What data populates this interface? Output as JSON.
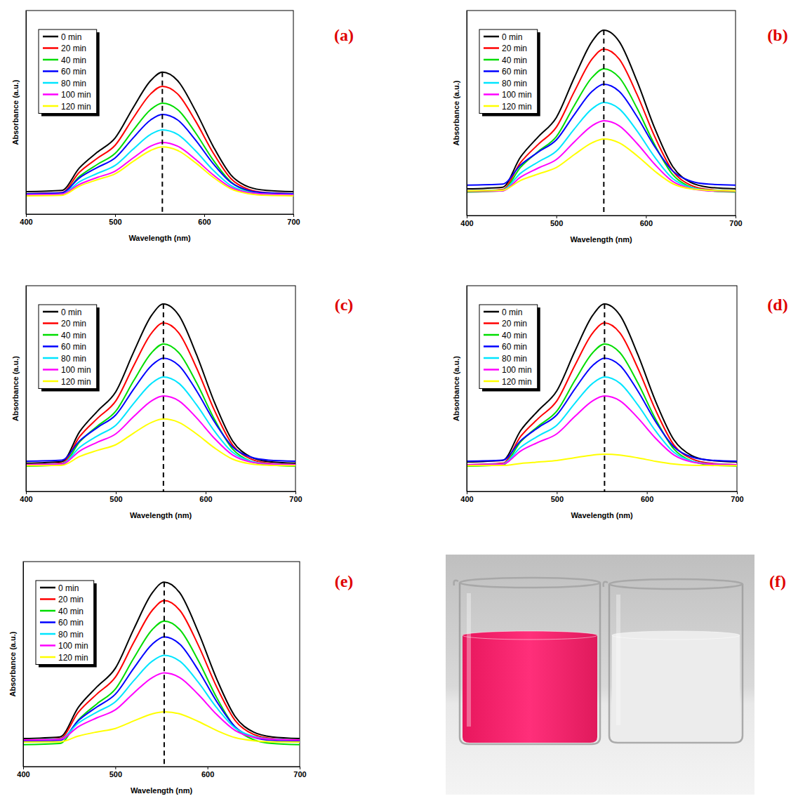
{
  "chart_data": [
    {
      "type": "line",
      "panel_label": "(a)",
      "x_label": "Wavelength (nm)",
      "y_label": "Absorbance (a.u.)",
      "x": [
        400,
        440,
        460,
        480,
        500,
        520,
        540,
        553,
        570,
        590,
        610,
        630,
        650,
        670,
        700
      ],
      "xlim": [
        400,
        700
      ],
      "xticks": [
        400,
        500,
        600,
        700
      ],
      "ylim": [
        0,
        1
      ],
      "tick_labels": "x",
      "legend": "upper-left",
      "reference_x": 553,
      "series": [
        {
          "name": "0 min",
          "color": "#000000",
          "values": [
            0.11,
            0.116,
            0.227,
            0.304,
            0.374,
            0.521,
            0.656,
            0.697,
            0.656,
            0.509,
            0.333,
            0.192,
            0.133,
            0.116,
            0.11
          ]
        },
        {
          "name": "20 min",
          "color": "#ff0000",
          "values": [
            0.1,
            0.105,
            0.206,
            0.274,
            0.338,
            0.47,
            0.591,
            0.628,
            0.591,
            0.459,
            0.301,
            0.174,
            0.121,
            0.105,
            0.1
          ]
        },
        {
          "name": "40 min",
          "color": "#00dd00",
          "values": [
            0.095,
            0.1,
            0.185,
            0.244,
            0.298,
            0.41,
            0.514,
            0.545,
            0.514,
            0.401,
            0.266,
            0.158,
            0.113,
            0.1,
            0.095
          ]
        },
        {
          "name": "60 min",
          "color": "#0000ff",
          "values": [
            0.1,
            0.104,
            0.178,
            0.229,
            0.276,
            0.373,
            0.463,
            0.49,
            0.463,
            0.365,
            0.248,
            0.155,
            0.116,
            0.104,
            0.1
          ]
        },
        {
          "name": "80 min",
          "color": "#00e5ff",
          "values": [
            0.095,
            0.098,
            0.159,
            0.2,
            0.239,
            0.318,
            0.392,
            0.414,
            0.392,
            0.312,
            0.216,
            0.14,
            0.108,
            0.098,
            0.095
          ]
        },
        {
          "name": "100 min",
          "color": "#ff00ff",
          "values": [
            0.095,
            0.098,
            0.146,
            0.18,
            0.211,
            0.275,
            0.334,
            0.352,
            0.334,
            0.27,
            0.193,
            0.131,
            0.105,
            0.098,
            0.095
          ]
        },
        {
          "name": "120 min",
          "color": "#ffff00",
          "values": [
            0.09,
            0.092,
            0.138,
            0.169,
            0.198,
            0.258,
            0.313,
            0.33,
            0.313,
            0.253,
            0.181,
            0.124,
            0.1,
            0.092,
            0.09
          ]
        }
      ]
    },
    {
      "type": "line",
      "panel_label": "(b)",
      "x_label": "Wavelength (nm)",
      "y_label": "Absorbance (a.u.)",
      "x": [
        400,
        440,
        460,
        480,
        500,
        520,
        540,
        553,
        570,
        590,
        610,
        630,
        650,
        670,
        700
      ],
      "xlim": [
        400,
        700
      ],
      "xticks": [
        400,
        500,
        600,
        700
      ],
      "ylim": [
        0,
        1
      ],
      "tick_labels": "x",
      "legend": "upper-left",
      "reference_x": 553,
      "series": [
        {
          "name": "0 min",
          "color": "#000000",
          "values": [
            0.13,
            0.138,
            0.285,
            0.385,
            0.478,
            0.672,
            0.85,
            0.904,
            0.85,
            0.656,
            0.424,
            0.238,
            0.161,
            0.138,
            0.13
          ]
        },
        {
          "name": "20 min",
          "color": "#ff0000",
          "values": [
            0.12,
            0.127,
            0.258,
            0.348,
            0.431,
            0.604,
            0.764,
            0.812,
            0.764,
            0.591,
            0.383,
            0.217,
            0.148,
            0.127,
            0.12
          ]
        },
        {
          "name": "40 min",
          "color": "#00dd00",
          "values": [
            0.115,
            0.121,
            0.235,
            0.313,
            0.385,
            0.536,
            0.674,
            0.716,
            0.674,
            0.524,
            0.343,
            0.199,
            0.139,
            0.121,
            0.115
          ]
        },
        {
          "name": "60 min",
          "color": "#0000ff",
          "values": [
            0.148,
            0.153,
            0.246,
            0.31,
            0.369,
            0.492,
            0.606,
            0.64,
            0.606,
            0.483,
            0.335,
            0.217,
            0.168,
            0.153,
            0.148
          ]
        },
        {
          "name": "80 min",
          "color": "#00e5ff",
          "values": [
            0.12,
            0.124,
            0.206,
            0.262,
            0.314,
            0.422,
            0.521,
            0.551,
            0.521,
            0.413,
            0.284,
            0.18,
            0.137,
            0.124,
            0.12
          ]
        },
        {
          "name": "100 min",
          "color": "#ff00ff",
          "values": [
            0.118,
            0.121,
            0.187,
            0.232,
            0.273,
            0.359,
            0.438,
            0.462,
            0.438,
            0.352,
            0.249,
            0.166,
            0.132,
            0.121,
            0.118
          ]
        },
        {
          "name": "120 min",
          "color": "#ffff00",
          "values": [
            0.12,
            0.123,
            0.171,
            0.203,
            0.234,
            0.297,
            0.355,
            0.373,
            0.355,
            0.292,
            0.216,
            0.155,
            0.13,
            0.123,
            0.12
          ]
        }
      ]
    },
    {
      "type": "line",
      "panel_label": "(c)",
      "x_label": "Wavelength (nm)",
      "y_label": "Absorbance (a.u.)",
      "x": [
        400,
        440,
        460,
        480,
        500,
        520,
        540,
        553,
        570,
        590,
        610,
        630,
        650,
        670,
        700
      ],
      "xlim": [
        400,
        700
      ],
      "xticks": [
        400,
        500,
        600,
        700
      ],
      "ylim": [
        0,
        1
      ],
      "tick_labels": "x",
      "legend": "upper-left",
      "reference_x": 553,
      "series": [
        {
          "name": "0 min",
          "color": "#000000",
          "values": [
            0.137,
            0.145,
            0.292,
            0.392,
            0.485,
            0.679,
            0.857,
            0.911,
            0.857,
            0.663,
            0.431,
            0.245,
            0.168,
            0.145,
            0.137
          ]
        },
        {
          "name": "20 min",
          "color": "#ff0000",
          "values": [
            0.13,
            0.137,
            0.268,
            0.357,
            0.44,
            0.612,
            0.771,
            0.819,
            0.771,
            0.599,
            0.392,
            0.226,
            0.158,
            0.137,
            0.13
          ]
        },
        {
          "name": "40 min",
          "color": "#00dd00",
          "values": [
            0.123,
            0.129,
            0.242,
            0.319,
            0.39,
            0.539,
            0.675,
            0.717,
            0.675,
            0.527,
            0.349,
            0.206,
            0.147,
            0.129,
            0.123
          ]
        },
        {
          "name": "60 min",
          "color": "#0000ff",
          "values": [
            0.147,
            0.152,
            0.247,
            0.312,
            0.372,
            0.498,
            0.613,
            0.648,
            0.613,
            0.488,
            0.337,
            0.217,
            0.167,
            0.152,
            0.147
          ]
        },
        {
          "name": "80 min",
          "color": "#00e5ff",
          "values": [
            0.13,
            0.134,
            0.215,
            0.271,
            0.322,
            0.428,
            0.526,
            0.556,
            0.526,
            0.42,
            0.292,
            0.19,
            0.147,
            0.134,
            0.13
          ]
        },
        {
          "name": "100 min",
          "color": "#ff00ff",
          "values": [
            0.13,
            0.133,
            0.197,
            0.24,
            0.28,
            0.364,
            0.441,
            0.464,
            0.441,
            0.357,
            0.257,
            0.177,
            0.143,
            0.133,
            0.13
          ]
        },
        {
          "name": "120 min",
          "color": "#ffff00",
          "values": [
            0.125,
            0.127,
            0.17,
            0.2,
            0.227,
            0.284,
            0.336,
            0.352,
            0.336,
            0.279,
            0.211,
            0.157,
            0.134,
            0.127,
            0.125
          ]
        }
      ]
    },
    {
      "type": "line",
      "panel_label": "(d)",
      "x_label": "Wavelength (nm)",
      "y_label": "Absorbance (a.u.)",
      "x": [
        400,
        440,
        460,
        480,
        500,
        520,
        540,
        553,
        570,
        590,
        610,
        630,
        650,
        670,
        700
      ],
      "xlim": [
        400,
        700
      ],
      "xticks": [
        400,
        500,
        600,
        700
      ],
      "ylim": [
        0,
        1
      ],
      "tick_labels": "x",
      "legend": "upper-left",
      "reference_x": 553,
      "series": [
        {
          "name": "0 min",
          "color": "#000000",
          "values": [
            0.143,
            0.151,
            0.297,
            0.396,
            0.489,
            0.681,
            0.857,
            0.911,
            0.857,
            0.665,
            0.435,
            0.251,
            0.174,
            0.151,
            0.143
          ]
        },
        {
          "name": "20 min",
          "color": "#ff0000",
          "values": [
            0.13,
            0.137,
            0.268,
            0.357,
            0.44,
            0.612,
            0.771,
            0.819,
            0.771,
            0.599,
            0.392,
            0.226,
            0.158,
            0.137,
            0.13
          ]
        },
        {
          "name": "40 min",
          "color": "#00dd00",
          "values": [
            0.123,
            0.129,
            0.242,
            0.319,
            0.39,
            0.539,
            0.675,
            0.717,
            0.675,
            0.527,
            0.349,
            0.206,
            0.147,
            0.129,
            0.123
          ]
        },
        {
          "name": "60 min",
          "color": "#0000ff",
          "values": [
            0.147,
            0.152,
            0.247,
            0.312,
            0.372,
            0.498,
            0.613,
            0.648,
            0.613,
            0.488,
            0.337,
            0.217,
            0.167,
            0.152,
            0.147
          ]
        },
        {
          "name": "80 min",
          "color": "#00e5ff",
          "values": [
            0.13,
            0.134,
            0.215,
            0.271,
            0.322,
            0.428,
            0.526,
            0.556,
            0.526,
            0.42,
            0.292,
            0.19,
            0.147,
            0.134,
            0.13
          ]
        },
        {
          "name": "100 min",
          "color": "#ff00ff",
          "values": [
            0.13,
            0.133,
            0.197,
            0.24,
            0.28,
            0.364,
            0.441,
            0.464,
            0.441,
            0.357,
            0.257,
            0.177,
            0.143,
            0.133,
            0.13
          ]
        },
        {
          "name": "120 min",
          "color": "#ffff00",
          "values": [
            0.125,
            0.126,
            0.136,
            0.143,
            0.15,
            0.164,
            0.177,
            0.181,
            0.177,
            0.163,
            0.146,
            0.133,
            0.127,
            0.126,
            0.125
          ]
        }
      ]
    },
    {
      "type": "line",
      "panel_label": "(e)",
      "x_label": "Wavelength (nm)",
      "y_label": "Absorbance (a.u.)",
      "x": [
        400,
        440,
        460,
        480,
        500,
        520,
        540,
        553,
        570,
        590,
        610,
        630,
        650,
        670,
        700
      ],
      "xlim": [
        400,
        700
      ],
      "xticks": [
        400,
        500,
        600,
        700
      ],
      "ylim": [
        0,
        1
      ],
      "tick_labels": "x",
      "legend": "upper-left",
      "reference_x": 553,
      "series": [
        {
          "name": "0 min",
          "color": "#000000",
          "values": [
            0.137,
            0.145,
            0.29,
            0.389,
            0.48,
            0.671,
            0.847,
            0.9,
            0.847,
            0.656,
            0.427,
            0.244,
            0.168,
            0.145,
            0.137
          ]
        },
        {
          "name": "20 min",
          "color": "#ff0000",
          "values": [
            0.13,
            0.137,
            0.266,
            0.354,
            0.436,
            0.606,
            0.762,
            0.81,
            0.762,
            0.592,
            0.388,
            0.225,
            0.157,
            0.137,
            0.13
          ]
        },
        {
          "name": "40 min",
          "color": "#00dd00",
          "values": [
            0.107,
            0.113,
            0.228,
            0.306,
            0.378,
            0.529,
            0.668,
            0.71,
            0.668,
            0.517,
            0.336,
            0.191,
            0.131,
            0.113,
            0.107
          ]
        },
        {
          "name": "60 min",
          "color": "#0000ff",
          "values": [
            0.123,
            0.128,
            0.225,
            0.291,
            0.353,
            0.48,
            0.597,
            0.633,
            0.597,
            0.47,
            0.317,
            0.194,
            0.143,
            0.128,
            0.123
          ]
        },
        {
          "name": "80 min",
          "color": "#00e5ff",
          "values": [
            0.13,
            0.134,
            0.213,
            0.266,
            0.316,
            0.419,
            0.514,
            0.543,
            0.514,
            0.411,
            0.287,
            0.188,
            0.147,
            0.134,
            0.13
          ]
        },
        {
          "name": "100 min",
          "color": "#ff00ff",
          "values": [
            0.13,
            0.133,
            0.195,
            0.238,
            0.277,
            0.359,
            0.434,
            0.457,
            0.434,
            0.352,
            0.254,
            0.176,
            0.143,
            0.133,
            0.13
          ]
        },
        {
          "name": "120 min",
          "color": "#ffff00",
          "values": [
            0.12,
            0.121,
            0.149,
            0.169,
            0.186,
            0.223,
            0.257,
            0.267,
            0.257,
            0.22,
            0.176,
            0.141,
            0.126,
            0.121,
            0.12
          ]
        }
      ]
    }
  ],
  "photo": {
    "panel_label": "(f)"
  }
}
